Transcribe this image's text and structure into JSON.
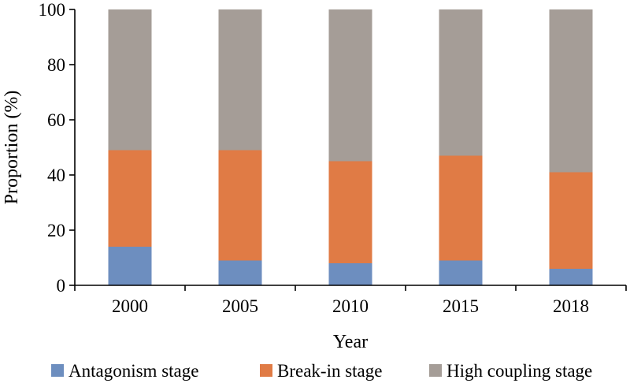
{
  "chart_data": {
    "type": "bar",
    "stacked": true,
    "title": "",
    "xlabel": "Year",
    "ylabel": "Proportion (%)",
    "ylim": [
      0,
      100
    ],
    "yticks": [
      "0",
      "20",
      "40",
      "60",
      "80",
      "100"
    ],
    "categories": [
      "2000",
      "2005",
      "2010",
      "2015",
      "2018"
    ],
    "series": [
      {
        "name": "Antagonism stage",
        "color": "#6d8ebf",
        "values": [
          14,
          9,
          8,
          9,
          6
        ]
      },
      {
        "name": "Break-in stage",
        "color": "#e07b45",
        "values": [
          35,
          40,
          37,
          38,
          35
        ]
      },
      {
        "name": "High coupling stage",
        "color": "#a59d97",
        "values": [
          51,
          51,
          55,
          53,
          59
        ]
      }
    ],
    "grid": false,
    "legend_position": "bottom"
  }
}
